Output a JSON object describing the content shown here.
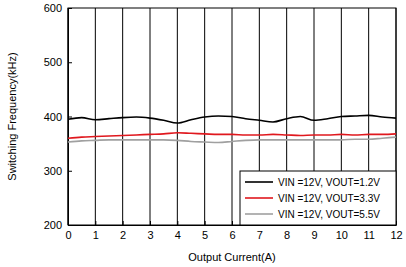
{
  "chart_data": {
    "type": "line",
    "xlabel": "Output Current(A)",
    "ylabel": "Switching Frequency(kHz)",
    "x": [
      0,
      0.5,
      1,
      1.5,
      2,
      2.5,
      3,
      3.5,
      4,
      4.5,
      5,
      5.5,
      6,
      6.5,
      7,
      7.5,
      8,
      8.5,
      9,
      9.5,
      10,
      10.5,
      11,
      11.5,
      12
    ],
    "series": [
      {
        "name": "VIN =12V, VOUT=1.2V",
        "color": "#000000",
        "values": [
          395,
          398,
          394,
          396,
          398,
          399,
          397,
          393,
          388,
          394,
          399,
          401,
          400,
          396,
          393,
          390,
          396,
          400,
          393,
          396,
          400,
          401,
          402,
          399,
          397
        ]
      },
      {
        "name": "VIN =12V, VOUT=3.3V",
        "color": "#e0181e",
        "values": [
          360,
          362,
          363,
          364,
          365,
          366,
          367,
          368,
          370,
          369,
          368,
          367,
          367,
          366,
          366,
          367,
          366,
          365,
          366,
          366,
          367,
          366,
          367,
          367,
          368
        ]
      },
      {
        "name": "VIN =12V, VOUT=5.5V",
        "color": "#a0a0a0",
        "values": [
          353,
          355,
          356,
          357,
          357,
          357,
          357,
          357,
          356,
          354,
          353,
          352,
          354,
          356,
          357,
          357,
          357,
          357,
          357,
          357,
          357,
          358,
          358,
          360,
          362
        ]
      }
    ],
    "xlim": [
      0,
      12
    ],
    "xticks": [
      0,
      1,
      2,
      3,
      4,
      5,
      6,
      7,
      8,
      9,
      10,
      11,
      12
    ],
    "ylim": [
      200,
      600
    ],
    "yticks": [
      200,
      300,
      400,
      500,
      600
    ],
    "grid": true,
    "legend": "lower right"
  }
}
